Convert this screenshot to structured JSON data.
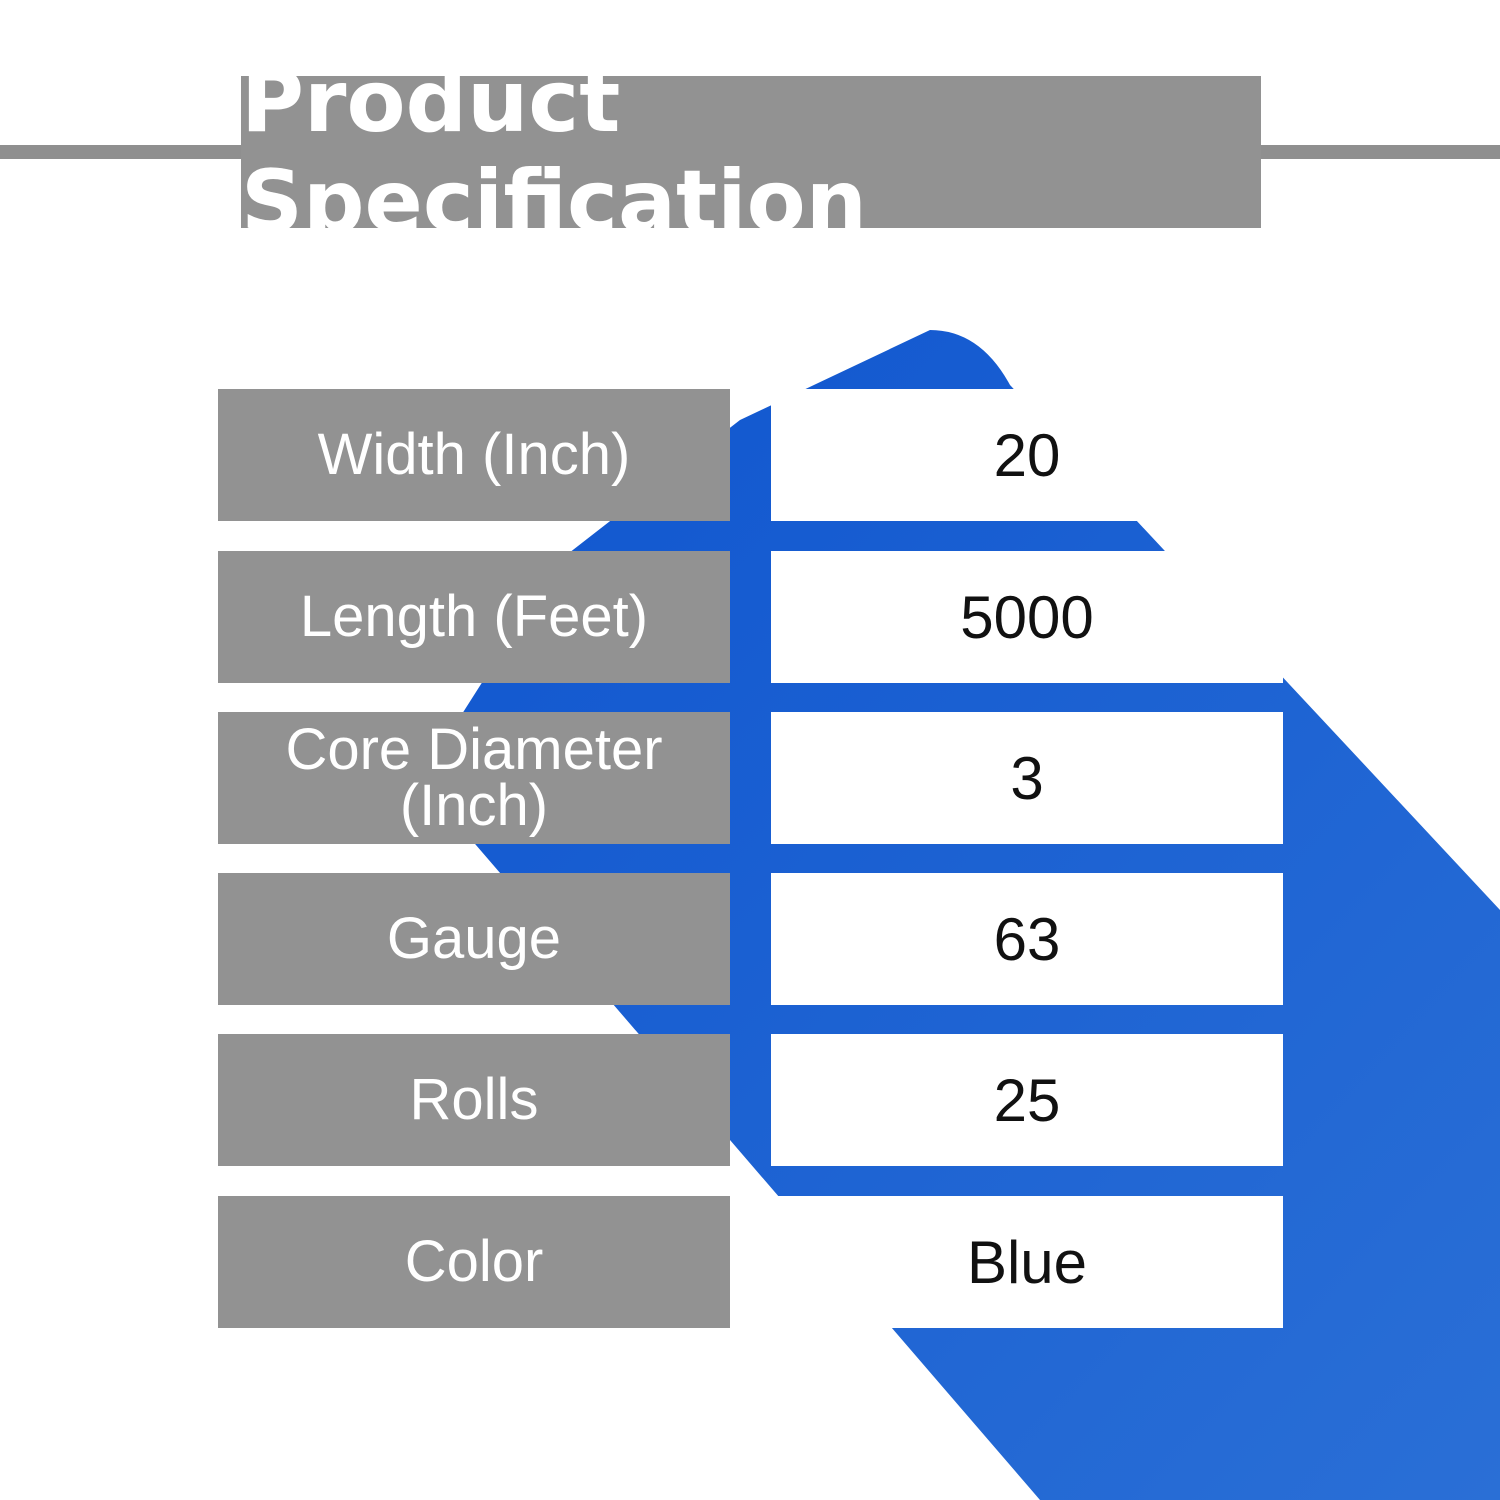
{
  "title": "Product Specification",
  "colors": {
    "roll": "#1257cc",
    "label_bg": "#929292"
  },
  "rows": [
    {
      "label": "Width (Inch)",
      "value": "20"
    },
    {
      "label": "Length (Feet)",
      "value": "5000"
    },
    {
      "label": "Core Diameter (Inch)",
      "value": "3"
    },
    {
      "label": "Gauge",
      "value": "63"
    },
    {
      "label": "Rolls",
      "value": "25"
    },
    {
      "label": "Color",
      "value": "Blue"
    }
  ]
}
